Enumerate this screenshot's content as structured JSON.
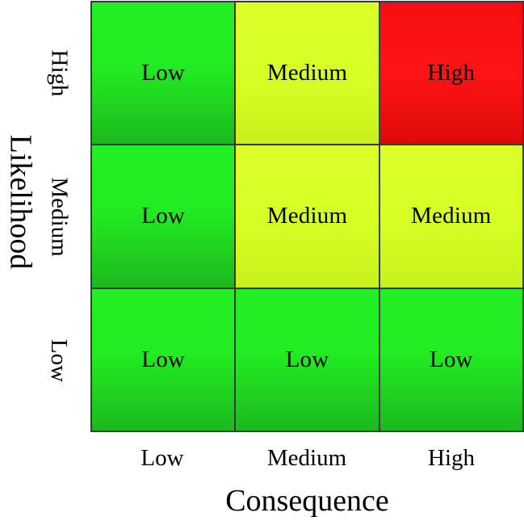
{
  "colors": {
    "low": "#22ec22",
    "medium": "#d6ff24",
    "high": "#ff1414",
    "grid_border": "#3a3a3a"
  },
  "y_axis": {
    "title": "Likelihood",
    "labels": [
      "High",
      "Medium",
      "Low"
    ]
  },
  "x_axis": {
    "title": "Consequence",
    "labels": [
      "Low",
      "Medium",
      "High"
    ]
  },
  "matrix": {
    "rows": [
      {
        "likelihood": "High",
        "cells": [
          {
            "label": "Low",
            "level": "low"
          },
          {
            "label": "Medium",
            "level": "medium"
          },
          {
            "label": "High",
            "level": "high"
          }
        ]
      },
      {
        "likelihood": "Medium",
        "cells": [
          {
            "label": "Low",
            "level": "low"
          },
          {
            "label": "Medium",
            "level": "medium"
          },
          {
            "label": "Medium",
            "level": "medium"
          }
        ]
      },
      {
        "likelihood": "Low",
        "cells": [
          {
            "label": "Low",
            "level": "low"
          },
          {
            "label": "Low",
            "level": "low"
          },
          {
            "label": "Low",
            "level": "low"
          }
        ]
      }
    ]
  }
}
